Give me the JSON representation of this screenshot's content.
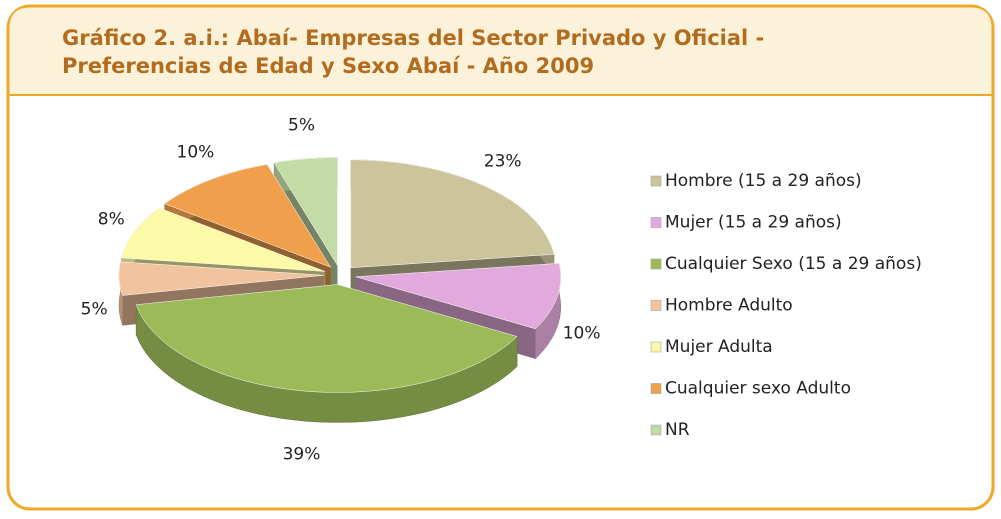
{
  "chart_data": {
    "type": "pie",
    "title": [
      "Gráfico 2. a.i.: Abaí- Empresas del Sector Privado y Oficial -",
      "Preferencias de Edad y Sexo Abaí - Año 2009"
    ],
    "categories": [
      "Hombre (15 a 29 años)",
      "Mujer (15 a 29 años)",
      "Cualquier Sexo (15 a 29 años)",
      "Hombre Adulto",
      "Mujer Adulta",
      "Cualquier sexo Adulto",
      "NR"
    ],
    "values": [
      23,
      10,
      39,
      5,
      8,
      10,
      5
    ],
    "value_labels": [
      "23%",
      "10%",
      "39%",
      "5%",
      "8%",
      "10%",
      "5%"
    ],
    "colors": [
      "#ccc59c",
      "#e2aadc",
      "#9cba58",
      "#f1c39e",
      "#fcf9a8",
      "#f0a04c",
      "#c3dca6"
    ],
    "legend": "right"
  }
}
